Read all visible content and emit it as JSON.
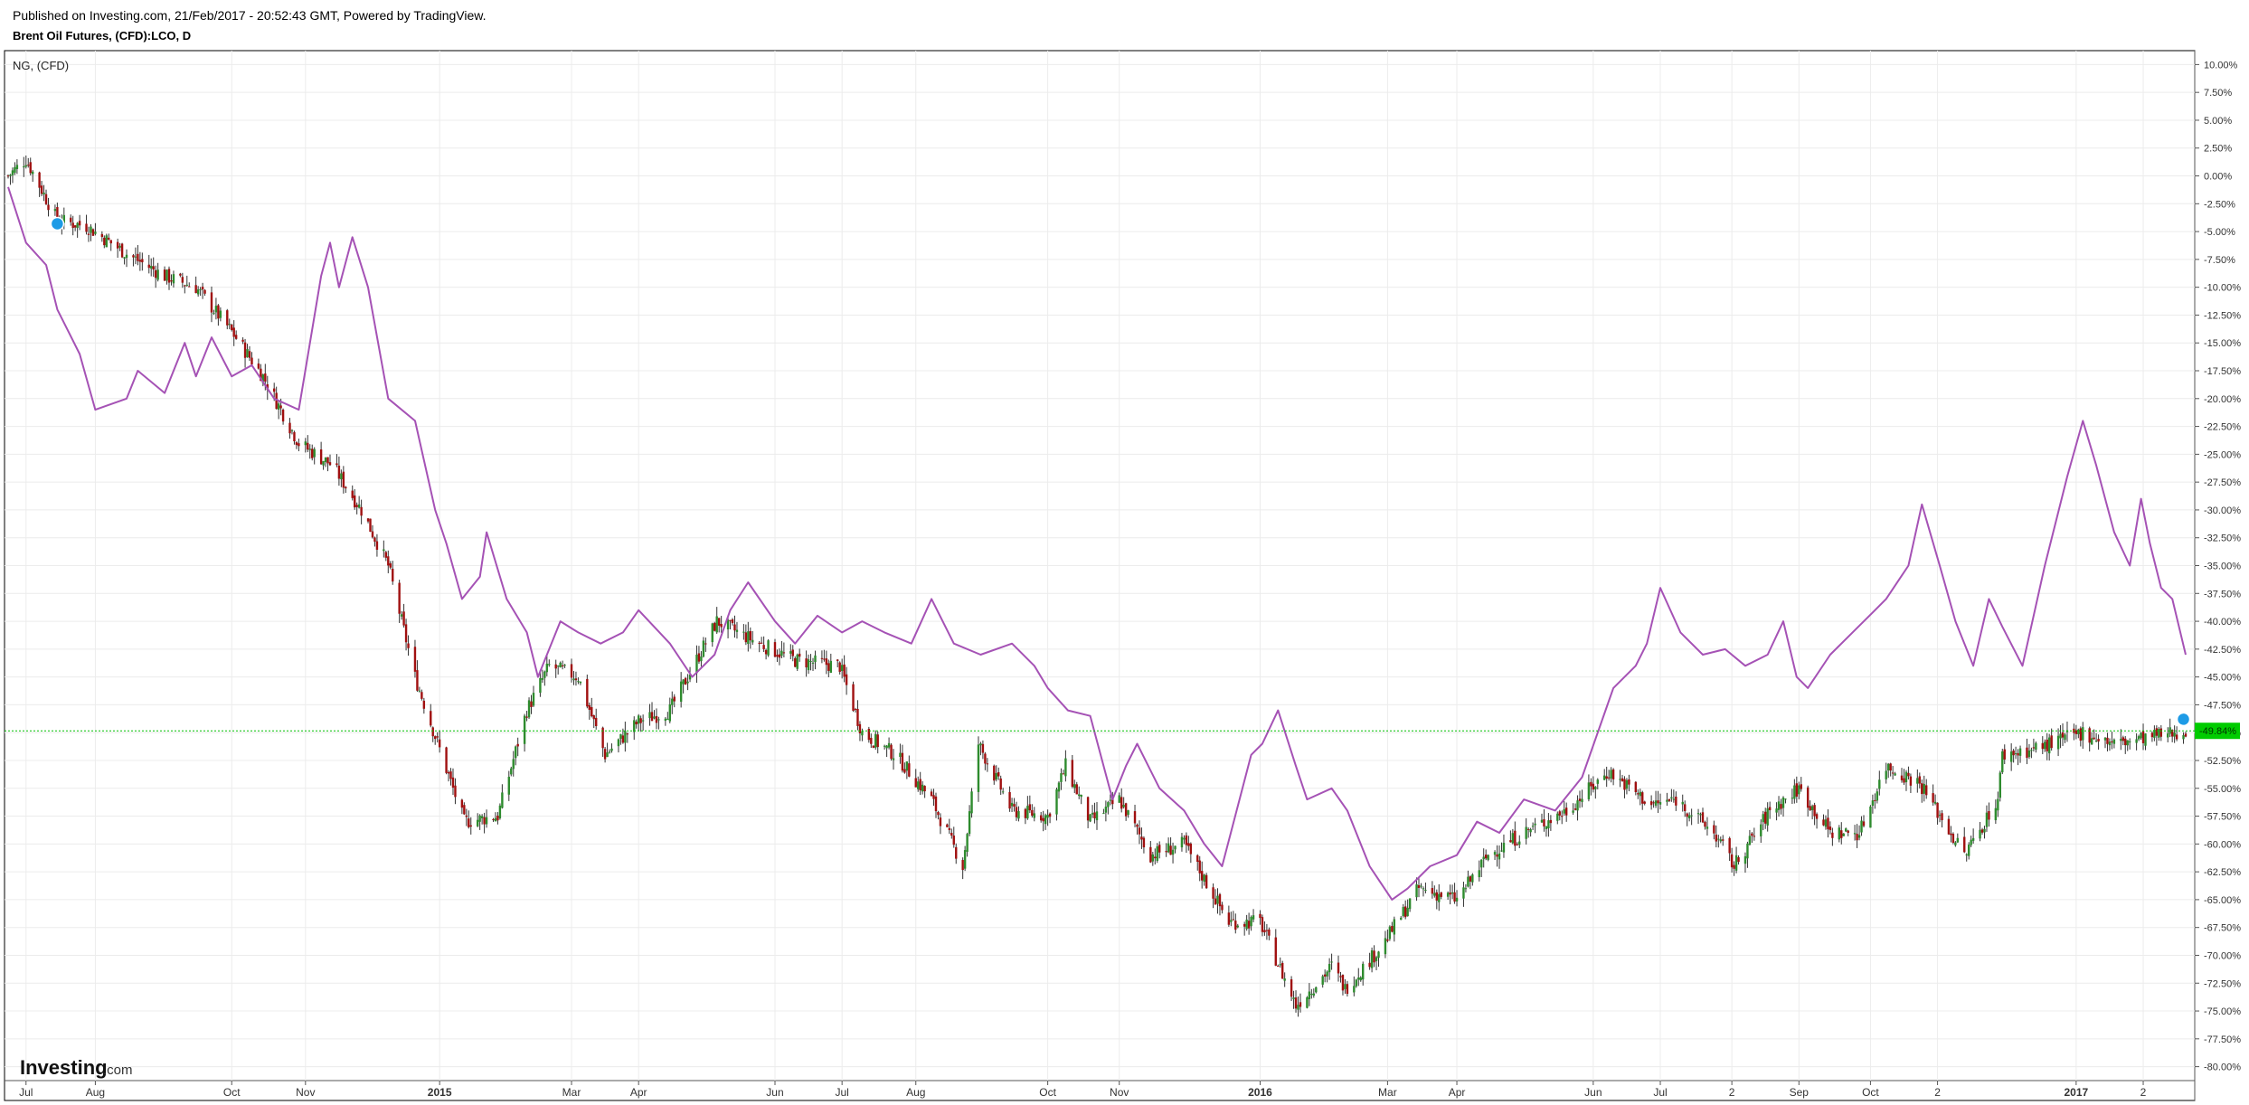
{
  "header": {
    "published": "Published on Investing.com, 21/Feb/2017 - 20:52:43 GMT, Powered by TradingView.",
    "instrument": "Brent Oil Futures, (CFD):LCO, D"
  },
  "pane": {
    "overlay_label": "NG,  (CFD)"
  },
  "logo": {
    "brand": "Investing",
    "domain": ".com"
  },
  "colors": {
    "up": "#2e8b2e",
    "down": "#a01010",
    "overlay": "#a552b5",
    "price_line": "#00c000",
    "price_badge": "#00cc00",
    "marker": "#1e9be6",
    "grid": "#ececec"
  },
  "chart_data": {
    "type": "line",
    "y_unit": "percent",
    "ylim": [
      -81.25,
      11.25
    ],
    "y_ticks": [
      10,
      7.5,
      5,
      2.5,
      0,
      -2.5,
      -5,
      -7.5,
      -10,
      -12.5,
      -15,
      -17.5,
      -20,
      -22.5,
      -25,
      -27.5,
      -30,
      -32.5,
      -35,
      -37.5,
      -40,
      -42.5,
      -45,
      -47.5,
      -50,
      -52.5,
      -55,
      -57.5,
      -60,
      -62.5,
      -65,
      -67.5,
      -70,
      -72.5,
      -75,
      -77.5,
      -80
    ],
    "y_tick_labels": [
      "10.00%",
      "7.50%",
      "5.00%",
      "2.50%",
      "0.00%",
      "-2.50%",
      "-5.00%",
      "-7.50%",
      "-10.00%",
      "-12.50%",
      "-15.00%",
      "-17.50%",
      "-20.00%",
      "-22.50%",
      "-25.00%",
      "-27.50%",
      "-30.00%",
      "-32.50%",
      "-35.00%",
      "-37.50%",
      "-40.00%",
      "-42.50%",
      "-45.00%",
      "-47.50%",
      "-50.00%",
      "-52.50%",
      "-55.00%",
      "-57.50%",
      "-60.00%",
      "-62.50%",
      "-65.00%",
      "-67.50%",
      "-70.00%",
      "-72.50%",
      "-75.00%",
      "-77.50%",
      "-80.00%"
    ],
    "x_range": [
      "2014-06-23",
      "2017-02-21"
    ],
    "x_ticks": [
      {
        "date": "2014-07-01",
        "label": "Jul",
        "bold": false
      },
      {
        "date": "2014-08-01",
        "label": "Aug",
        "bold": false
      },
      {
        "date": "2014-10-01",
        "label": "Oct",
        "bold": false
      },
      {
        "date": "2014-11-03",
        "label": "Nov",
        "bold": false
      },
      {
        "date": "2015-01-02",
        "label": "2015",
        "bold": true
      },
      {
        "date": "2015-03-02",
        "label": "Mar",
        "bold": false
      },
      {
        "date": "2015-04-01",
        "label": "Apr",
        "bold": false
      },
      {
        "date": "2015-06-01",
        "label": "Jun",
        "bold": false
      },
      {
        "date": "2015-07-01",
        "label": "Jul",
        "bold": false
      },
      {
        "date": "2015-08-03",
        "label": "Aug",
        "bold": false
      },
      {
        "date": "2015-10-01",
        "label": "Oct",
        "bold": false
      },
      {
        "date": "2015-11-02",
        "label": "Nov",
        "bold": false
      },
      {
        "date": "2016-01-04",
        "label": "2016",
        "bold": true
      },
      {
        "date": "2016-03-01",
        "label": "Mar",
        "bold": false
      },
      {
        "date": "2016-04-01",
        "label": "Apr",
        "bold": false
      },
      {
        "date": "2016-06-01",
        "label": "Jun",
        "bold": false
      },
      {
        "date": "2016-07-01",
        "label": "Jul",
        "bold": false
      },
      {
        "date": "2016-08-02",
        "label": "2",
        "bold": false
      },
      {
        "date": "2016-09-01",
        "label": "Sep",
        "bold": false
      },
      {
        "date": "2016-10-03",
        "label": "Oct",
        "bold": false
      },
      {
        "date": "2016-11-02",
        "label": "2",
        "bold": false
      },
      {
        "date": "2017-01-03",
        "label": "2017",
        "bold": true
      },
      {
        "date": "2017-02-02",
        "label": "2",
        "bold": false
      }
    ],
    "last_value": -49.84,
    "last_value_label": "-49.84%",
    "series": [
      {
        "name": "Brent Oil Futures, (CFD):LCO, D",
        "style": "candlestick",
        "anchors": [
          [
            "2014-06-23",
            0
          ],
          [
            "2014-07-01",
            1.5
          ],
          [
            "2014-07-15",
            -4
          ],
          [
            "2014-07-28",
            -4.5
          ],
          [
            "2014-08-15",
            -7
          ],
          [
            "2014-09-01",
            -9
          ],
          [
            "2014-09-15",
            -10
          ],
          [
            "2014-10-01",
            -14
          ],
          [
            "2014-10-15",
            -18
          ],
          [
            "2014-10-31",
            -24
          ],
          [
            "2014-11-15",
            -26
          ],
          [
            "2014-11-28",
            -30
          ],
          [
            "2014-12-10",
            -35
          ],
          [
            "2014-12-22",
            -45
          ],
          [
            "2015-01-13",
            -58
          ],
          [
            "2015-01-28",
            -57.5
          ],
          [
            "2015-02-10",
            -48
          ],
          [
            "2015-02-20",
            -44
          ],
          [
            "2015-03-05",
            -45
          ],
          [
            "2015-03-17",
            -52
          ],
          [
            "2015-04-01",
            -49
          ],
          [
            "2015-04-15",
            -48
          ],
          [
            "2015-05-06",
            -40
          ],
          [
            "2015-05-25",
            -42
          ],
          [
            "2015-06-10",
            -43.5
          ],
          [
            "2015-06-30",
            -44
          ],
          [
            "2015-07-10",
            -50
          ],
          [
            "2015-07-25",
            -52
          ],
          [
            "2015-08-10",
            -56
          ],
          [
            "2015-08-24",
            -62
          ],
          [
            "2015-08-31",
            -51
          ],
          [
            "2015-09-15",
            -57
          ],
          [
            "2015-10-01",
            -57.5
          ],
          [
            "2015-10-09",
            -53
          ],
          [
            "2015-10-20",
            -58
          ],
          [
            "2015-11-02",
            -56
          ],
          [
            "2015-11-16",
            -61
          ],
          [
            "2015-12-01",
            -60
          ],
          [
            "2015-12-21",
            -67
          ],
          [
            "2016-01-04",
            -67
          ],
          [
            "2016-01-20",
            -74.5
          ],
          [
            "2016-02-05",
            -71
          ],
          [
            "2016-02-11",
            -73
          ],
          [
            "2016-02-28",
            -69
          ],
          [
            "2016-03-15",
            -64
          ],
          [
            "2016-04-01",
            -65
          ],
          [
            "2016-04-15",
            -61
          ],
          [
            "2016-05-01",
            -59
          ],
          [
            "2016-05-20",
            -57
          ],
          [
            "2016-06-08",
            -53.5
          ],
          [
            "2016-06-27",
            -56.5
          ],
          [
            "2016-07-08",
            -56
          ],
          [
            "2016-07-25",
            -59
          ],
          [
            "2016-08-03",
            -62
          ],
          [
            "2016-08-19",
            -57
          ],
          [
            "2016-09-01",
            -55
          ],
          [
            "2016-09-15",
            -59
          ],
          [
            "2016-09-28",
            -59
          ],
          [
            "2016-10-10",
            -53
          ],
          [
            "2016-10-25",
            -54.5
          ],
          [
            "2016-11-14",
            -61
          ],
          [
            "2016-11-29",
            -56
          ],
          [
            "2016-12-01",
            -52
          ],
          [
            "2016-12-15",
            -51.5
          ],
          [
            "2017-01-06",
            -50
          ],
          [
            "2017-01-20",
            -51
          ],
          [
            "2017-02-21",
            -49.84
          ]
        ]
      },
      {
        "name": "NG,  (CFD)",
        "style": "line",
        "points": [
          [
            "2014-06-23",
            -1
          ],
          [
            "2014-07-01",
            -6
          ],
          [
            "2014-07-10",
            -8
          ],
          [
            "2014-07-15",
            -12
          ],
          [
            "2014-07-20",
            -14
          ],
          [
            "2014-07-25",
            -16
          ],
          [
            "2014-08-01",
            -21
          ],
          [
            "2014-08-15",
            -20
          ],
          [
            "2014-08-20",
            -17.5
          ],
          [
            "2014-09-01",
            -19.5
          ],
          [
            "2014-09-10",
            -15
          ],
          [
            "2014-09-15",
            -18
          ],
          [
            "2014-09-22",
            -14.5
          ],
          [
            "2014-10-01",
            -18
          ],
          [
            "2014-10-10",
            -17
          ],
          [
            "2014-10-20",
            -20
          ],
          [
            "2014-10-31",
            -21
          ],
          [
            "2014-11-10",
            -9
          ],
          [
            "2014-11-14",
            -6
          ],
          [
            "2014-11-18",
            -10
          ],
          [
            "2014-11-24",
            -5.5
          ],
          [
            "2014-12-01",
            -10
          ],
          [
            "2014-12-10",
            -20
          ],
          [
            "2014-12-22",
            -22
          ],
          [
            "2014-12-31",
            -30
          ],
          [
            "2015-01-05",
            -33
          ],
          [
            "2015-01-12",
            -38
          ],
          [
            "2015-01-20",
            -36
          ],
          [
            "2015-01-23",
            -32
          ],
          [
            "2015-02-01",
            -38
          ],
          [
            "2015-02-10",
            -41
          ],
          [
            "2015-02-15",
            -45
          ],
          [
            "2015-02-25",
            -40
          ],
          [
            "2015-03-05",
            -41
          ],
          [
            "2015-03-15",
            -42
          ],
          [
            "2015-03-25",
            -41
          ],
          [
            "2015-04-01",
            -39
          ],
          [
            "2015-04-15",
            -42
          ],
          [
            "2015-04-25",
            -45
          ],
          [
            "2015-05-05",
            -43
          ],
          [
            "2015-05-12",
            -39
          ],
          [
            "2015-05-20",
            -36.5
          ],
          [
            "2015-06-01",
            -40
          ],
          [
            "2015-06-10",
            -42
          ],
          [
            "2015-06-20",
            -39.5
          ],
          [
            "2015-07-01",
            -41
          ],
          [
            "2015-07-10",
            -40
          ],
          [
            "2015-07-20",
            -41
          ],
          [
            "2015-08-01",
            -42
          ],
          [
            "2015-08-10",
            -38
          ],
          [
            "2015-08-20",
            -42
          ],
          [
            "2015-09-01",
            -43
          ],
          [
            "2015-09-15",
            -42
          ],
          [
            "2015-09-25",
            -44
          ],
          [
            "2015-10-01",
            -46
          ],
          [
            "2015-10-10",
            -48
          ],
          [
            "2015-10-20",
            -48.5
          ],
          [
            "2015-10-30",
            -56
          ],
          [
            "2015-11-05",
            -53
          ],
          [
            "2015-11-10",
            -51
          ],
          [
            "2015-11-20",
            -55
          ],
          [
            "2015-12-01",
            -57
          ],
          [
            "2015-12-10",
            -60
          ],
          [
            "2015-12-18",
            -62
          ],
          [
            "2015-12-31",
            -52
          ],
          [
            "2016-01-05",
            -51
          ],
          [
            "2016-01-12",
            -48
          ],
          [
            "2016-01-20",
            -53
          ],
          [
            "2016-01-25",
            -56
          ],
          [
            "2016-02-05",
            -55
          ],
          [
            "2016-02-12",
            -57
          ],
          [
            "2016-02-22",
            -62
          ],
          [
            "2016-03-03",
            -65
          ],
          [
            "2016-03-10",
            -64
          ],
          [
            "2016-03-20",
            -62
          ],
          [
            "2016-04-01",
            -61
          ],
          [
            "2016-04-10",
            -58
          ],
          [
            "2016-04-20",
            -59
          ],
          [
            "2016-05-01",
            -56
          ],
          [
            "2016-05-15",
            -57
          ],
          [
            "2016-05-27",
            -54
          ],
          [
            "2016-06-03",
            -50
          ],
          [
            "2016-06-10",
            -46
          ],
          [
            "2016-06-20",
            -44
          ],
          [
            "2016-06-25",
            -42
          ],
          [
            "2016-07-01",
            -37
          ],
          [
            "2016-07-10",
            -41
          ],
          [
            "2016-07-20",
            -43
          ],
          [
            "2016-07-30",
            -42.5
          ],
          [
            "2016-08-08",
            -44
          ],
          [
            "2016-08-18",
            -43
          ],
          [
            "2016-08-25",
            -40
          ],
          [
            "2016-08-31",
            -45
          ],
          [
            "2016-09-05",
            -46
          ],
          [
            "2016-09-15",
            -43
          ],
          [
            "2016-09-25",
            -41
          ],
          [
            "2016-10-05",
            -39
          ],
          [
            "2016-10-10",
            -38
          ],
          [
            "2016-10-20",
            -35
          ],
          [
            "2016-10-26",
            -29.5
          ],
          [
            "2016-11-03",
            -35
          ],
          [
            "2016-11-10",
            -40
          ],
          [
            "2016-11-18",
            -44
          ],
          [
            "2016-11-25",
            -38
          ],
          [
            "2016-12-01",
            -40.5
          ],
          [
            "2016-12-10",
            -44
          ],
          [
            "2016-12-20",
            -35
          ],
          [
            "2016-12-30",
            -27
          ],
          [
            "2017-01-06",
            -22
          ],
          [
            "2017-01-12",
            -26
          ],
          [
            "2017-01-20",
            -32
          ],
          [
            "2017-01-27",
            -35
          ],
          [
            "2017-02-01",
            -29
          ],
          [
            "2017-02-05",
            -33
          ],
          [
            "2017-02-10",
            -37
          ],
          [
            "2017-02-15",
            -38
          ],
          [
            "2017-02-21",
            -43
          ]
        ]
      }
    ]
  }
}
